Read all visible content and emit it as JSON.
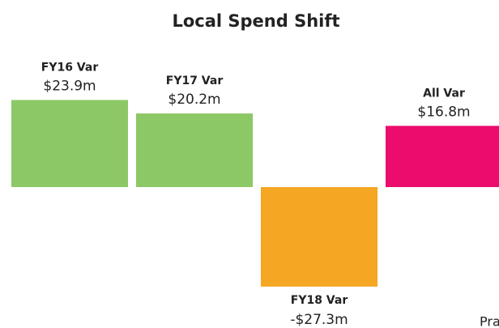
{
  "chart_data": {
    "type": "bar",
    "title": "Local Spend Shift",
    "categories": [
      "FY16 Var",
      "FY17 Var",
      "FY18 Var",
      "All Var"
    ],
    "values": [
      23.9,
      20.2,
      -27.3,
      16.8
    ],
    "value_labels": [
      "$23.9m",
      "$20.2m",
      "-$27.3m",
      "$16.8m"
    ],
    "colors": [
      "#8cc866",
      "#8cc866",
      "#f5a623",
      "#eb0c6e"
    ],
    "ylim": [
      -30,
      30
    ],
    "annotation": "Pra"
  }
}
